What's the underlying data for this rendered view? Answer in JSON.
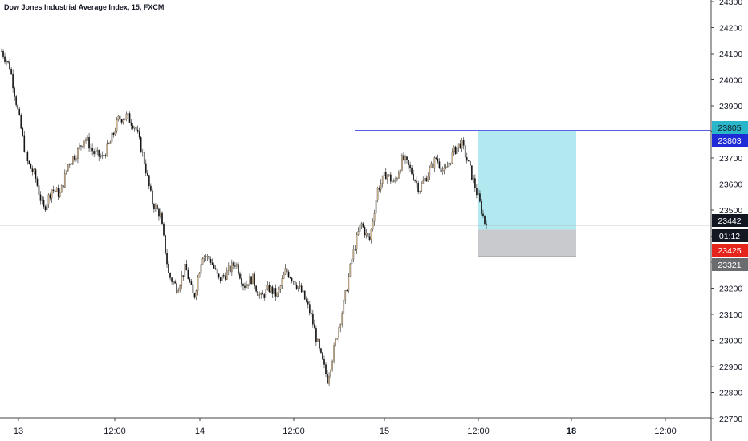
{
  "header": {
    "title": "Dow Jones Industrial Average Index, 15, FXCM"
  },
  "colors": {
    "up_candle": "#d2b48c",
    "down_candle": "#111111",
    "wick": "#222222",
    "target_zone": "#b2e8ef",
    "stop_zone": "#c9cacd",
    "resistance_line": "#1e2bd6",
    "last_price_line": "#9a9a9a",
    "axis_line": "#444444",
    "axis_text": "#131722"
  },
  "chart_data": {
    "type": "candlestick",
    "title": "Dow Jones Industrial Average Index, 15, FXCM",
    "ylim": [
      22650,
      24320
    ],
    "y_ticks": [
      24300,
      24200,
      24100,
      24000,
      23900,
      23800,
      23700,
      23600,
      23500,
      23400,
      23300,
      23200,
      23100,
      23000,
      22900,
      22800,
      22700
    ],
    "x_ticks": [
      {
        "label": "13",
        "bold": false
      },
      {
        "label": "12:00",
        "bold": false
      },
      {
        "label": "14",
        "bold": false
      },
      {
        "label": "12:00",
        "bold": false
      },
      {
        "label": "15",
        "bold": false
      },
      {
        "label": "12:00",
        "bold": false
      },
      {
        "label": "18",
        "bold": true
      },
      {
        "label": "12:00",
        "bold": false
      }
    ],
    "grid": false,
    "series": [
      {
        "type": "close_path",
        "closes": [
          24110,
          24050,
          23870,
          23690,
          23630,
          23500,
          23580,
          23560,
          23680,
          23720,
          23780,
          23720,
          23700,
          23760,
          23850,
          23860,
          23820,
          23700,
          23530,
          23480,
          23250,
          23200,
          23280,
          23160,
          23330,
          23310,
          23230,
          23260,
          23300,
          23210,
          23240,
          23160,
          23200,
          23170,
          23270,
          23230,
          23180,
          23100,
          22960,
          22850,
          23000,
          23150,
          23330,
          23450,
          23380,
          23580,
          23640,
          23600,
          23700,
          23650,
          23580,
          23640,
          23700,
          23640,
          23720,
          23760,
          23660,
          23550,
          23430
        ]
      }
    ],
    "levels": [
      {
        "label": "23805",
        "value": 23805,
        "kind": "resistance"
      },
      {
        "label": "23803",
        "value": 23803,
        "kind": "target"
      },
      {
        "label": "23442",
        "value": 23442,
        "kind": "last_price"
      },
      {
        "label": "01:12",
        "kind": "countdown"
      },
      {
        "label": "23425",
        "value": 23425,
        "kind": "entry"
      },
      {
        "label": "23321",
        "value": 23321,
        "kind": "stop"
      }
    ],
    "position": {
      "target": 23803,
      "entry": 23425,
      "stop": 23321
    }
  }
}
